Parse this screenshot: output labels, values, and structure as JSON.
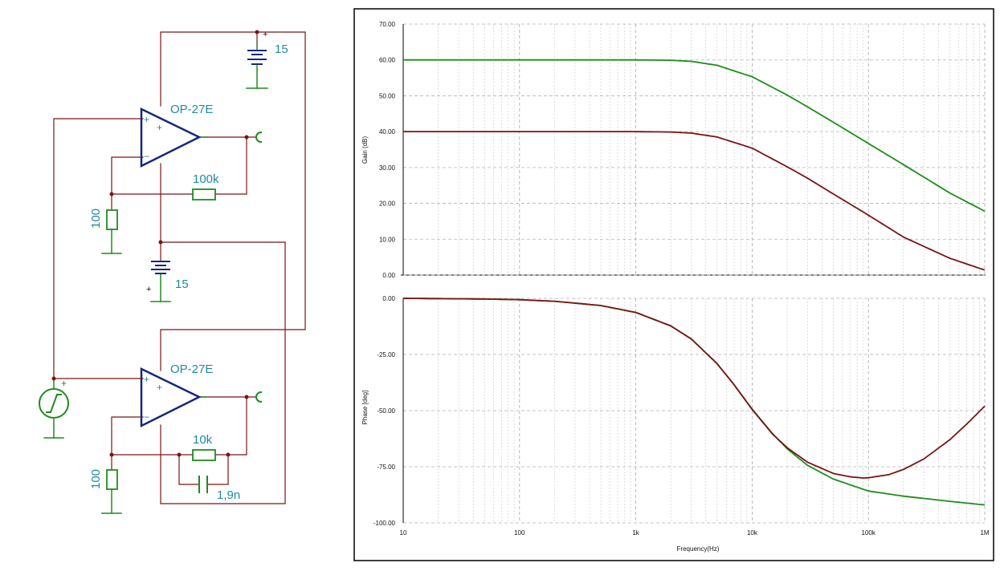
{
  "schematic": {
    "supply_top": {
      "value": "15",
      "plus": "+"
    },
    "supply_mid": {
      "value": "15",
      "plus": "+"
    },
    "opamp_top": {
      "name": "OP-27E",
      "in_plus": "+",
      "in_minus": "−",
      "sym": "+"
    },
    "opamp_bottom": {
      "name": "OP-27E",
      "in_plus": "+",
      "in_minus": "−",
      "sym": "+"
    },
    "r_feedback_top": "100k",
    "r_ground_top": "100",
    "r_feedback_bottom": "10k",
    "c_feedback_bottom": "1,9n",
    "r_ground_bottom": "100",
    "source": {
      "plus": "+"
    },
    "colors": {
      "wire": "#7a1414",
      "component": "#1e8c1e",
      "opamp": "#16287a",
      "label": "#1f8aa0"
    }
  },
  "chart_data": [
    {
      "type": "line",
      "title": "",
      "xlabel": "",
      "ylabel": "Gain (dB)",
      "xscale": "log",
      "xlim": [
        10,
        1000000
      ],
      "ylim": [
        0,
        70
      ],
      "grid": true,
      "yticks": [
        "0.00",
        "10.00",
        "20.00",
        "30.00",
        "40.00",
        "50.00",
        "60.00",
        "70.00"
      ],
      "series": [
        {
          "color": "#1e8c1e",
          "x": [
            10,
            100,
            1000,
            2000,
            3000,
            5000,
            10000,
            20000,
            30000,
            50000,
            100000,
            200000,
            500000,
            1000000
          ],
          "y": [
            60,
            60,
            60,
            59.9,
            59.6,
            58.5,
            55.3,
            50.2,
            46.9,
            42.6,
            36.7,
            30.8,
            22.9,
            17.8
          ]
        },
        {
          "color": "#7a1414",
          "x": [
            10,
            100,
            1000,
            2000,
            3000,
            5000,
            10000,
            20000,
            30000,
            50000,
            100000,
            200000,
            500000,
            1000000
          ],
          "y": [
            40,
            40,
            40,
            39.9,
            39.6,
            38.5,
            35.4,
            30.2,
            27.0,
            22.6,
            16.7,
            10.6,
            4.7,
            1.4
          ]
        }
      ]
    },
    {
      "type": "line",
      "title": "",
      "xlabel": "Frequency(Hz)",
      "ylabel": "Phase [deg]",
      "xscale": "log",
      "xlim": [
        10,
        1000000
      ],
      "ylim": [
        -100,
        0
      ],
      "grid": true,
      "xticks": [
        "10",
        "100",
        "1k",
        "10k",
        "100k",
        "1M"
      ],
      "yticks": [
        "0.00",
        "-25.00",
        "-50.00",
        "-75.00",
        "-100.00"
      ],
      "series": [
        {
          "color": "#1e8c1e",
          "x": [
            10,
            50,
            100,
            200,
            500,
            1000,
            2000,
            3000,
            5000,
            7000,
            10000,
            15000,
            20000,
            30000,
            50000,
            100000,
            200000,
            500000,
            1000000
          ],
          "y": [
            0,
            -0.3,
            -0.6,
            -1.3,
            -3.2,
            -6.3,
            -12.3,
            -18.1,
            -29.1,
            -38.5,
            -49.3,
            -60.3,
            -67.0,
            -74.4,
            -80.5,
            -85.8,
            -88.1,
            -90.4,
            -92.0
          ]
        },
        {
          "color": "#7a1414",
          "x": [
            10,
            50,
            100,
            200,
            500,
            1000,
            2000,
            3000,
            5000,
            7000,
            10000,
            15000,
            20000,
            30000,
            50000,
            70000,
            90000,
            100000,
            150000,
            200000,
            300000,
            500000,
            700000,
            1000000
          ],
          "y": [
            0,
            -0.3,
            -0.6,
            -1.3,
            -3.2,
            -6.3,
            -12.3,
            -18.1,
            -29.1,
            -38.5,
            -49.5,
            -60.5,
            -66.5,
            -73.0,
            -78.0,
            -79.5,
            -80.0,
            -79.9,
            -78.5,
            -76.2,
            -71.5,
            -63.0,
            -56.0,
            -48.0
          ]
        }
      ]
    }
  ]
}
